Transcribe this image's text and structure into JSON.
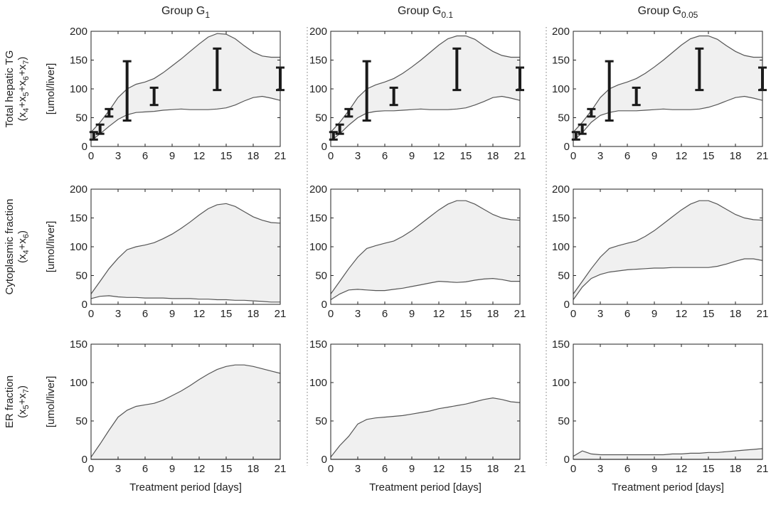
{
  "figure": {
    "columns": [
      {
        "title": "Group G",
        "sub": "1"
      },
      {
        "title": "Group G",
        "sub": "0.1"
      },
      {
        "title": "Group G",
        "sub": "0.05"
      }
    ],
    "row_labels": [
      {
        "line1": "Total hepatic TG",
        "line2": [
          {
            "t": "(x"
          },
          {
            "s": "4"
          },
          {
            "t": "+x"
          },
          {
            "s": "5"
          },
          {
            "t": "+x"
          },
          {
            "s": "6"
          },
          {
            "t": "+x"
          },
          {
            "s": "7"
          },
          {
            "t": ")"
          }
        ],
        "unit": "[umol/liver]"
      },
      {
        "line1": "Cytoplasmic fraction",
        "line2": [
          {
            "t": "(x"
          },
          {
            "s": "4"
          },
          {
            "t": "+x"
          },
          {
            "s": "6"
          },
          {
            "t": ")"
          }
        ],
        "unit": "[umol/liver]"
      },
      {
        "line1": "ER fraction",
        "line2": [
          {
            "t": "(x"
          },
          {
            "s": "5"
          },
          {
            "t": "+x"
          },
          {
            "s": "7"
          },
          {
            "t": ")"
          }
        ],
        "unit": "[umol/liver]"
      }
    ],
    "xlabel": "Treatment period [days]",
    "colors": {
      "band_fill": "#f0f0f0",
      "line": "#555555",
      "errorbar": "#1a1a1a",
      "divider": "#777777"
    }
  },
  "chart_data": [
    {
      "type": "area",
      "row": 0,
      "col": 0,
      "x": [
        0,
        1,
        2,
        3,
        4,
        5,
        6,
        7,
        8,
        9,
        10,
        11,
        12,
        13,
        14,
        15,
        16,
        17,
        18,
        19,
        20,
        21
      ],
      "upper": [
        25,
        42,
        62,
        85,
        100,
        108,
        112,
        118,
        128,
        140,
        152,
        165,
        178,
        190,
        196,
        195,
        187,
        175,
        164,
        157,
        155,
        155
      ],
      "lower": [
        10,
        22,
        35,
        47,
        55,
        59,
        60,
        61,
        63,
        64,
        65,
        64,
        64,
        64,
        65,
        67,
        72,
        79,
        85,
        87,
        84,
        80
      ],
      "errorbars": [
        {
          "x": 0.3,
          "lo": 12,
          "hi": 25
        },
        {
          "x": 1,
          "lo": 22,
          "hi": 38
        },
        {
          "x": 2,
          "lo": 52,
          "hi": 65
        },
        {
          "x": 4,
          "lo": 45,
          "hi": 148
        },
        {
          "x": 7,
          "lo": 72,
          "hi": 102
        },
        {
          "x": 14,
          "lo": 98,
          "hi": 170
        },
        {
          "x": 21,
          "lo": 98,
          "hi": 137
        }
      ],
      "xlim": [
        0,
        21
      ],
      "ylim": [
        0,
        200
      ],
      "xticks": [
        0,
        3,
        6,
        9,
        12,
        15,
        18,
        21
      ],
      "yticks": [
        0,
        50,
        100,
        150,
        200
      ]
    },
    {
      "type": "area",
      "row": 0,
      "col": 1,
      "x": [
        0,
        1,
        2,
        3,
        4,
        5,
        6,
        7,
        8,
        9,
        10,
        11,
        12,
        13,
        14,
        15,
        16,
        17,
        18,
        19,
        20,
        21
      ],
      "upper": [
        25,
        42,
        62,
        85,
        100,
        107,
        112,
        118,
        127,
        138,
        150,
        163,
        176,
        187,
        192,
        192,
        186,
        175,
        165,
        158,
        155,
        155
      ],
      "lower": [
        10,
        22,
        37,
        50,
        58,
        61,
        62,
        62,
        63,
        64,
        65,
        64,
        64,
        64,
        65,
        67,
        72,
        78,
        85,
        87,
        84,
        80
      ],
      "errorbars": [
        {
          "x": 0.3,
          "lo": 12,
          "hi": 25
        },
        {
          "x": 1,
          "lo": 22,
          "hi": 38
        },
        {
          "x": 2,
          "lo": 52,
          "hi": 65
        },
        {
          "x": 4,
          "lo": 45,
          "hi": 148
        },
        {
          "x": 7,
          "lo": 72,
          "hi": 102
        },
        {
          "x": 14,
          "lo": 98,
          "hi": 170
        },
        {
          "x": 21,
          "lo": 98,
          "hi": 137
        }
      ],
      "xlim": [
        0,
        21
      ],
      "ylim": [
        0,
        200
      ],
      "xticks": [
        0,
        3,
        6,
        9,
        12,
        15,
        18,
        21
      ],
      "yticks": [
        0,
        50,
        100,
        150,
        200
      ]
    },
    {
      "type": "area",
      "row": 0,
      "col": 2,
      "x": [
        0,
        1,
        2,
        3,
        4,
        5,
        6,
        7,
        8,
        9,
        10,
        11,
        12,
        13,
        14,
        15,
        16,
        17,
        18,
        19,
        20,
        21
      ],
      "upper": [
        25,
        42,
        62,
        85,
        100,
        107,
        112,
        118,
        127,
        138,
        150,
        163,
        176,
        187,
        192,
        192,
        186,
        175,
        165,
        158,
        155,
        155
      ],
      "lower": [
        10,
        24,
        42,
        54,
        59,
        62,
        62,
        62,
        63,
        64,
        65,
        64,
        64,
        64,
        65,
        68,
        73,
        79,
        85,
        87,
        84,
        80
      ],
      "errorbars": [
        {
          "x": 0.3,
          "lo": 12,
          "hi": 25
        },
        {
          "x": 1,
          "lo": 22,
          "hi": 38
        },
        {
          "x": 2,
          "lo": 52,
          "hi": 65
        },
        {
          "x": 4,
          "lo": 45,
          "hi": 148
        },
        {
          "x": 7,
          "lo": 72,
          "hi": 102
        },
        {
          "x": 14,
          "lo": 98,
          "hi": 170
        },
        {
          "x": 21,
          "lo": 98,
          "hi": 137
        }
      ],
      "xlim": [
        0,
        21
      ],
      "ylim": [
        0,
        200
      ],
      "xticks": [
        0,
        3,
        6,
        9,
        12,
        15,
        18,
        21
      ],
      "yticks": [
        0,
        50,
        100,
        150,
        200
      ]
    },
    {
      "type": "area",
      "row": 1,
      "col": 0,
      "x": [
        0,
        1,
        2,
        3,
        4,
        5,
        6,
        7,
        8,
        9,
        10,
        11,
        12,
        13,
        14,
        15,
        16,
        17,
        18,
        19,
        20,
        21
      ],
      "upper": [
        18,
        40,
        62,
        80,
        95,
        100,
        103,
        107,
        114,
        122,
        132,
        143,
        155,
        166,
        173,
        175,
        170,
        161,
        152,
        146,
        142,
        141
      ],
      "lower": [
        10,
        14,
        15,
        13,
        12,
        12,
        11,
        11,
        11,
        10,
        10,
        10,
        9,
        9,
        8,
        8,
        7,
        7,
        6,
        5,
        4,
        4
      ],
      "errorbars": [],
      "xlim": [
        0,
        21
      ],
      "ylim": [
        0,
        200
      ],
      "xticks": [
        0,
        3,
        6,
        9,
        12,
        15,
        18,
        21
      ],
      "yticks": [
        0,
        50,
        100,
        150,
        200
      ]
    },
    {
      "type": "area",
      "row": 1,
      "col": 1,
      "x": [
        0,
        1,
        2,
        3,
        4,
        5,
        6,
        7,
        8,
        9,
        10,
        11,
        12,
        13,
        14,
        15,
        16,
        17,
        18,
        19,
        20,
        21
      ],
      "upper": [
        18,
        40,
        62,
        82,
        97,
        102,
        106,
        110,
        118,
        128,
        140,
        152,
        164,
        174,
        180,
        180,
        174,
        165,
        156,
        150,
        147,
        146
      ],
      "lower": [
        8,
        18,
        25,
        26,
        25,
        24,
        24,
        26,
        28,
        31,
        34,
        37,
        40,
        39,
        38,
        39,
        42,
        44,
        45,
        43,
        40,
        40
      ],
      "errorbars": [],
      "xlim": [
        0,
        21
      ],
      "ylim": [
        0,
        200
      ],
      "xticks": [
        0,
        3,
        6,
        9,
        12,
        15,
        18,
        21
      ],
      "yticks": [
        0,
        50,
        100,
        150,
        200
      ]
    },
    {
      "type": "area",
      "row": 1,
      "col": 2,
      "x": [
        0,
        1,
        2,
        3,
        4,
        5,
        6,
        7,
        8,
        9,
        10,
        11,
        12,
        13,
        14,
        15,
        16,
        17,
        18,
        19,
        20,
        21
      ],
      "upper": [
        18,
        40,
        62,
        82,
        97,
        102,
        106,
        110,
        118,
        128,
        140,
        152,
        164,
        174,
        180,
        180,
        174,
        165,
        156,
        150,
        147,
        146
      ],
      "lower": [
        8,
        30,
        45,
        52,
        56,
        58,
        60,
        61,
        62,
        63,
        63,
        64,
        64,
        64,
        64,
        64,
        66,
        70,
        75,
        79,
        79,
        76
      ],
      "errorbars": [],
      "xlim": [
        0,
        21
      ],
      "ylim": [
        0,
        200
      ],
      "xticks": [
        0,
        3,
        6,
        9,
        12,
        15,
        18,
        21
      ],
      "yticks": [
        0,
        50,
        100,
        150,
        200
      ]
    },
    {
      "type": "area",
      "row": 2,
      "col": 0,
      "x": [
        0,
        1,
        2,
        3,
        4,
        5,
        6,
        7,
        8,
        9,
        10,
        11,
        12,
        13,
        14,
        15,
        16,
        17,
        18,
        19,
        20,
        21
      ],
      "upper": [
        3,
        20,
        38,
        55,
        64,
        69,
        71,
        73,
        77,
        83,
        89,
        96,
        104,
        111,
        117,
        121,
        123,
        123,
        121,
        118,
        115,
        112
      ],
      "lower": [
        0,
        0,
        0,
        0,
        0,
        0,
        0,
        0,
        0,
        0,
        0,
        0,
        0,
        0,
        0,
        0,
        0,
        0,
        0,
        0,
        0,
        0
      ],
      "errorbars": [],
      "xlim": [
        0,
        21
      ],
      "ylim": [
        0,
        150
      ],
      "xticks": [
        0,
        3,
        6,
        9,
        12,
        15,
        18,
        21
      ],
      "yticks": [
        0,
        50,
        100,
        150
      ]
    },
    {
      "type": "area",
      "row": 2,
      "col": 1,
      "x": [
        0,
        1,
        2,
        3,
        4,
        5,
        6,
        7,
        8,
        9,
        10,
        11,
        12,
        13,
        14,
        15,
        16,
        17,
        18,
        19,
        20,
        21
      ],
      "upper": [
        3,
        18,
        30,
        46,
        52,
        54,
        55,
        56,
        57,
        59,
        61,
        63,
        66,
        68,
        70,
        72,
        75,
        78,
        80,
        78,
        75,
        74
      ],
      "lower": [
        0,
        0,
        0,
        0,
        0,
        0,
        0,
        0,
        0,
        0,
        0,
        0,
        0,
        0,
        0,
        0,
        0,
        0,
        0,
        0,
        0,
        0
      ],
      "errorbars": [],
      "xlim": [
        0,
        21
      ],
      "ylim": [
        0,
        150
      ],
      "xticks": [
        0,
        3,
        6,
        9,
        12,
        15,
        18,
        21
      ],
      "yticks": [
        0,
        50,
        100,
        150
      ]
    },
    {
      "type": "area",
      "row": 2,
      "col": 2,
      "x": [
        0,
        1,
        2,
        3,
        4,
        5,
        6,
        7,
        8,
        9,
        10,
        11,
        12,
        13,
        14,
        15,
        16,
        17,
        18,
        19,
        20,
        21
      ],
      "upper": [
        4,
        11,
        7,
        6,
        6,
        6,
        6,
        6,
        6,
        6,
        6,
        7,
        7,
        8,
        8,
        9,
        9,
        10,
        11,
        12,
        13,
        14
      ],
      "lower": [
        0,
        0,
        0,
        0,
        0,
        0,
        0,
        0,
        0,
        0,
        0,
        0,
        0,
        0,
        0,
        0,
        0,
        0,
        0,
        0,
        0,
        0
      ],
      "errorbars": [],
      "xlim": [
        0,
        21
      ],
      "ylim": [
        0,
        150
      ],
      "xticks": [
        0,
        3,
        6,
        9,
        12,
        15,
        18,
        21
      ],
      "yticks": [
        0,
        50,
        100,
        150
      ]
    }
  ]
}
